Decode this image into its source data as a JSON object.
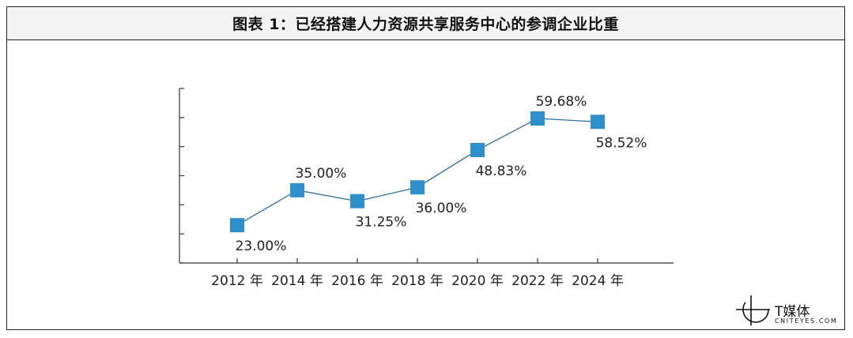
{
  "title": "图表 1：已经搭建人力资源共享服务中心的参调企业比重",
  "chart_data": {
    "type": "line",
    "categories": [
      "2012 年",
      "2014 年",
      "2016 年",
      "2018 年",
      "2020 年",
      "2022 年",
      "2024 年"
    ],
    "values": [
      23.0,
      35.0,
      31.25,
      36.0,
      48.83,
      59.68,
      58.52
    ],
    "data_labels": [
      "23.00%",
      "35.00%",
      "31.25%",
      "36.00%",
      "48.83%",
      "59.68%",
      "58.52%"
    ],
    "label_positions": [
      "below",
      "above",
      "below",
      "below",
      "below",
      "above",
      "below"
    ],
    "ylim": [
      10,
      70
    ],
    "yticks": [
      10,
      20,
      30,
      40,
      50,
      60,
      70
    ],
    "marker": "square",
    "colors": {
      "line": "#2e6d9e",
      "marker": "#2e8fcd",
      "axis": "#333333"
    }
  },
  "logo": {
    "name": "T媒体",
    "sub": "CNITEYES.COM",
    "tm": "™"
  }
}
